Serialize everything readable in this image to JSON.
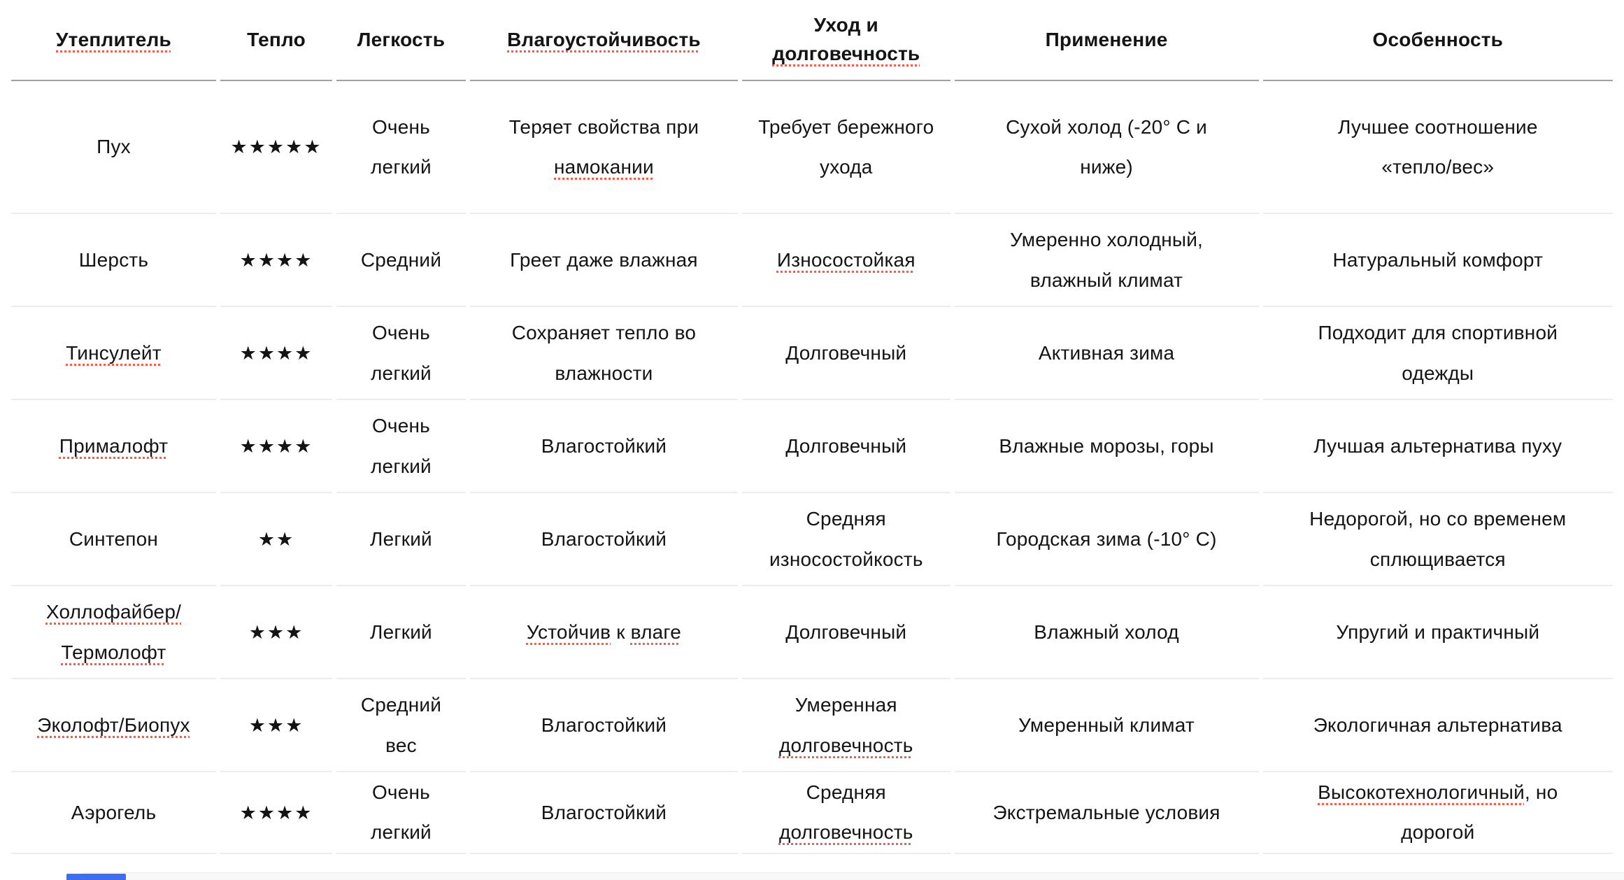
{
  "colors": {
    "text": "#141414",
    "header_border": "#a0a0a0",
    "row_border": "#ececec",
    "underline": "#ee5f4d",
    "partial_blue": "#3f6df1",
    "strip": "#f8f8f8"
  },
  "icons": {
    "star": "★",
    "star_meaning": "filled-star-rating-icon"
  },
  "table": {
    "headers": [
      {
        "id": "insulation",
        "runs": [
          {
            "t": "Утеплитель",
            "u": true
          }
        ]
      },
      {
        "id": "warmth",
        "runs": [
          {
            "t": "Тепло"
          }
        ]
      },
      {
        "id": "lightness",
        "runs": [
          {
            "t": "Легкость"
          }
        ]
      },
      {
        "id": "moisture",
        "runs": [
          {
            "t": "Влагоустойчивость",
            "u": true
          }
        ]
      },
      {
        "id": "care",
        "runs": [
          {
            "t": "Уход и "
          },
          {
            "t": "долговечность",
            "u": true
          }
        ]
      },
      {
        "id": "usage",
        "runs": [
          {
            "t": "Применение"
          }
        ]
      },
      {
        "id": "feature",
        "runs": [
          {
            "t": "Особенность"
          }
        ]
      }
    ],
    "rows": [
      {
        "name": [
          {
            "t": "Пух"
          }
        ],
        "stars": 5,
        "lightness": [
          {
            "t": "Очень легкий"
          }
        ],
        "moisture": [
          {
            "t": "Теряет свойства при "
          },
          {
            "t": "намокании",
            "u": true
          }
        ],
        "care": [
          {
            "t": "Требует бережного ухода"
          }
        ],
        "usage": [
          {
            "t": "Сухой холод (-20° C и ниже)"
          }
        ],
        "feature": [
          {
            "t": "Лучшее соотношение «тепло/вес»"
          }
        ]
      },
      {
        "name": [
          {
            "t": "Шерсть"
          }
        ],
        "stars": 4,
        "lightness": [
          {
            "t": "Средний"
          }
        ],
        "moisture": [
          {
            "t": "Греет даже влажная"
          }
        ],
        "care": [
          {
            "t": "Износостойкая",
            "u": true
          }
        ],
        "usage": [
          {
            "t": "Умеренно холодный, влажный климат"
          }
        ],
        "feature": [
          {
            "t": "Натуральный комфорт"
          }
        ]
      },
      {
        "name": [
          {
            "t": "Тинсулейт",
            "u": true
          }
        ],
        "stars": 4,
        "lightness": [
          {
            "t": "Очень легкий"
          }
        ],
        "moisture": [
          {
            "t": "Сохраняет тепло во влажности"
          }
        ],
        "care": [
          {
            "t": "Долговечный"
          }
        ],
        "usage": [
          {
            "t": "Активная зима"
          }
        ],
        "feature": [
          {
            "t": "Подходит для спортивной одежды"
          }
        ]
      },
      {
        "name": [
          {
            "t": "Прималофт",
            "u": true
          }
        ],
        "stars": 4,
        "lightness": [
          {
            "t": "Очень легкий"
          }
        ],
        "moisture": [
          {
            "t": "Влагостойкий"
          }
        ],
        "care": [
          {
            "t": "Долговечный"
          }
        ],
        "usage": [
          {
            "t": "Влажные морозы, горы"
          }
        ],
        "feature": [
          {
            "t": "Лучшая альтернатива пуху"
          }
        ]
      },
      {
        "name": [
          {
            "t": "Синтепон"
          }
        ],
        "stars": 2,
        "lightness": [
          {
            "t": "Легкий"
          }
        ],
        "moisture": [
          {
            "t": "Влагостойкий"
          }
        ],
        "care": [
          {
            "t": "Средняя износостойкость"
          }
        ],
        "usage": [
          {
            "t": "Городская зима (-10° C)"
          }
        ],
        "feature": [
          {
            "t": "Недорогой, но со временем сплющивается"
          }
        ]
      },
      {
        "name": [
          {
            "t": "Холлофайбер/",
            "u": true
          },
          {
            "t": "Термолофт",
            "u": true
          }
        ],
        "stars": 3,
        "lightness": [
          {
            "t": "Легкий"
          }
        ],
        "moisture": [
          {
            "t": "Устойчив",
            "u": true
          },
          {
            "t": " к "
          },
          {
            "t": "влаге",
            "u": true
          }
        ],
        "care": [
          {
            "t": "Долговечный"
          }
        ],
        "usage": [
          {
            "t": "Влажный холод"
          }
        ],
        "feature": [
          {
            "t": "Упругий и практичный"
          }
        ]
      },
      {
        "name": [
          {
            "t": "Эколофт/Биопух",
            "u": true
          }
        ],
        "stars": 3,
        "lightness": [
          {
            "t": "Средний вес"
          }
        ],
        "moisture": [
          {
            "t": "Влагостойкий"
          }
        ],
        "care": [
          {
            "t": "Умеренная "
          },
          {
            "t": "долговечность",
            "u": true
          }
        ],
        "usage": [
          {
            "t": "Умеренный климат"
          }
        ],
        "feature": [
          {
            "t": "Экологичная альтернатива"
          }
        ]
      },
      {
        "name": [
          {
            "t": "Аэрогель"
          }
        ],
        "stars": 4,
        "lightness": [
          {
            "t": "Очень легкий"
          }
        ],
        "moisture": [
          {
            "t": "Влагостойкий"
          }
        ],
        "care": [
          {
            "t": "Средняя "
          },
          {
            "t": "долговечность",
            "u": true
          }
        ],
        "usage": [
          {
            "t": "Экстремальные условия"
          }
        ],
        "feature": [
          {
            "t": "Высокотехнологичный",
            "u": true
          },
          {
            "t": ", но дорогой"
          }
        ]
      }
    ]
  }
}
